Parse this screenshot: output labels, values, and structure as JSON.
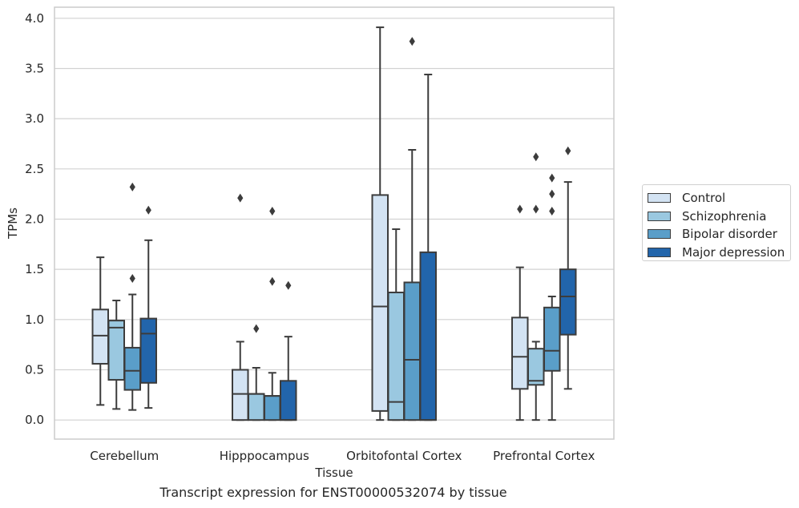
{
  "chart_data": {
    "type": "box",
    "xlabel": "Tissue",
    "ylabel": "TPMs",
    "caption": "Transcript expression for ENST00000532074 by tissue",
    "ylim": [
      -0.19,
      4.11
    ],
    "yticks": [
      "0.0",
      "0.5",
      "1.0",
      "1.5",
      "2.0",
      "2.5",
      "3.0",
      "3.5",
      "4.0"
    ],
    "grid": true,
    "legend_position": "right",
    "categories": [
      "Cerebellum",
      "Hipppocampus",
      "Orbitofontal Cortex",
      "Prefrontal Cortex"
    ],
    "series": [
      {
        "name": "Control",
        "color": "#d3e3f3",
        "boxes": [
          {
            "whislo": 0.15,
            "q1": 0.56,
            "med": 0.84,
            "q3": 1.1,
            "whishi": 1.62,
            "fliers": []
          },
          {
            "whislo": 0.0,
            "q1": 0.0,
            "med": 0.26,
            "q3": 0.5,
            "whishi": 0.78,
            "fliers": [
              2.21
            ]
          },
          {
            "whislo": 0.0,
            "q1": 0.09,
            "med": 1.13,
            "q3": 2.24,
            "whishi": 3.91,
            "fliers": []
          },
          {
            "whislo": 0.0,
            "q1": 0.31,
            "med": 0.63,
            "q3": 1.02,
            "whishi": 1.52,
            "fliers": [
              2.1
            ]
          }
        ]
      },
      {
        "name": "Schizophrenia",
        "color": "#9ac8e0",
        "boxes": [
          {
            "whislo": 0.11,
            "q1": 0.4,
            "med": 0.92,
            "q3": 0.99,
            "whishi": 1.19,
            "fliers": []
          },
          {
            "whislo": 0.0,
            "q1": 0.0,
            "med": 0.26,
            "q3": 0.26,
            "whishi": 0.52,
            "fliers": [
              0.91
            ]
          },
          {
            "whislo": 0.0,
            "q1": 0.0,
            "med": 0.18,
            "q3": 1.27,
            "whishi": 1.9,
            "fliers": []
          },
          {
            "whislo": 0.0,
            "q1": 0.35,
            "med": 0.39,
            "q3": 0.71,
            "whishi": 0.78,
            "fliers": [
              2.1,
              2.62
            ]
          }
        ]
      },
      {
        "name": "Bipolar disorder",
        "color": "#5a9ec9",
        "boxes": [
          {
            "whislo": 0.1,
            "q1": 0.3,
            "med": 0.49,
            "q3": 0.72,
            "whishi": 1.25,
            "fliers": [
              1.41,
              2.32
            ]
          },
          {
            "whislo": 0.0,
            "q1": 0.0,
            "med": 0.24,
            "q3": 0.24,
            "whishi": 0.47,
            "fliers": [
              1.38,
              2.08
            ]
          },
          {
            "whislo": 0.0,
            "q1": 0.0,
            "med": 0.6,
            "q3": 1.37,
            "whishi": 2.69,
            "fliers": [
              3.77
            ]
          },
          {
            "whislo": 0.0,
            "q1": 0.49,
            "med": 0.69,
            "q3": 1.12,
            "whishi": 1.23,
            "fliers": [
              2.08,
              2.25,
              2.41
            ]
          }
        ]
      },
      {
        "name": "Major depression",
        "color": "#2265ab",
        "boxes": [
          {
            "whislo": 0.12,
            "q1": 0.37,
            "med": 0.86,
            "q3": 1.01,
            "whishi": 1.79,
            "fliers": [
              2.09
            ]
          },
          {
            "whislo": 0.0,
            "q1": 0.0,
            "med": 0.0,
            "q3": 0.39,
            "whishi": 0.83,
            "fliers": [
              1.34
            ]
          },
          {
            "whislo": 0.0,
            "q1": 0.0,
            "med": 0.0,
            "q3": 1.67,
            "whishi": 3.44,
            "fliers": []
          },
          {
            "whislo": 0.31,
            "q1": 0.85,
            "med": 1.23,
            "q3": 1.5,
            "whishi": 2.37,
            "fliers": [
              2.68
            ]
          }
        ]
      }
    ]
  }
}
